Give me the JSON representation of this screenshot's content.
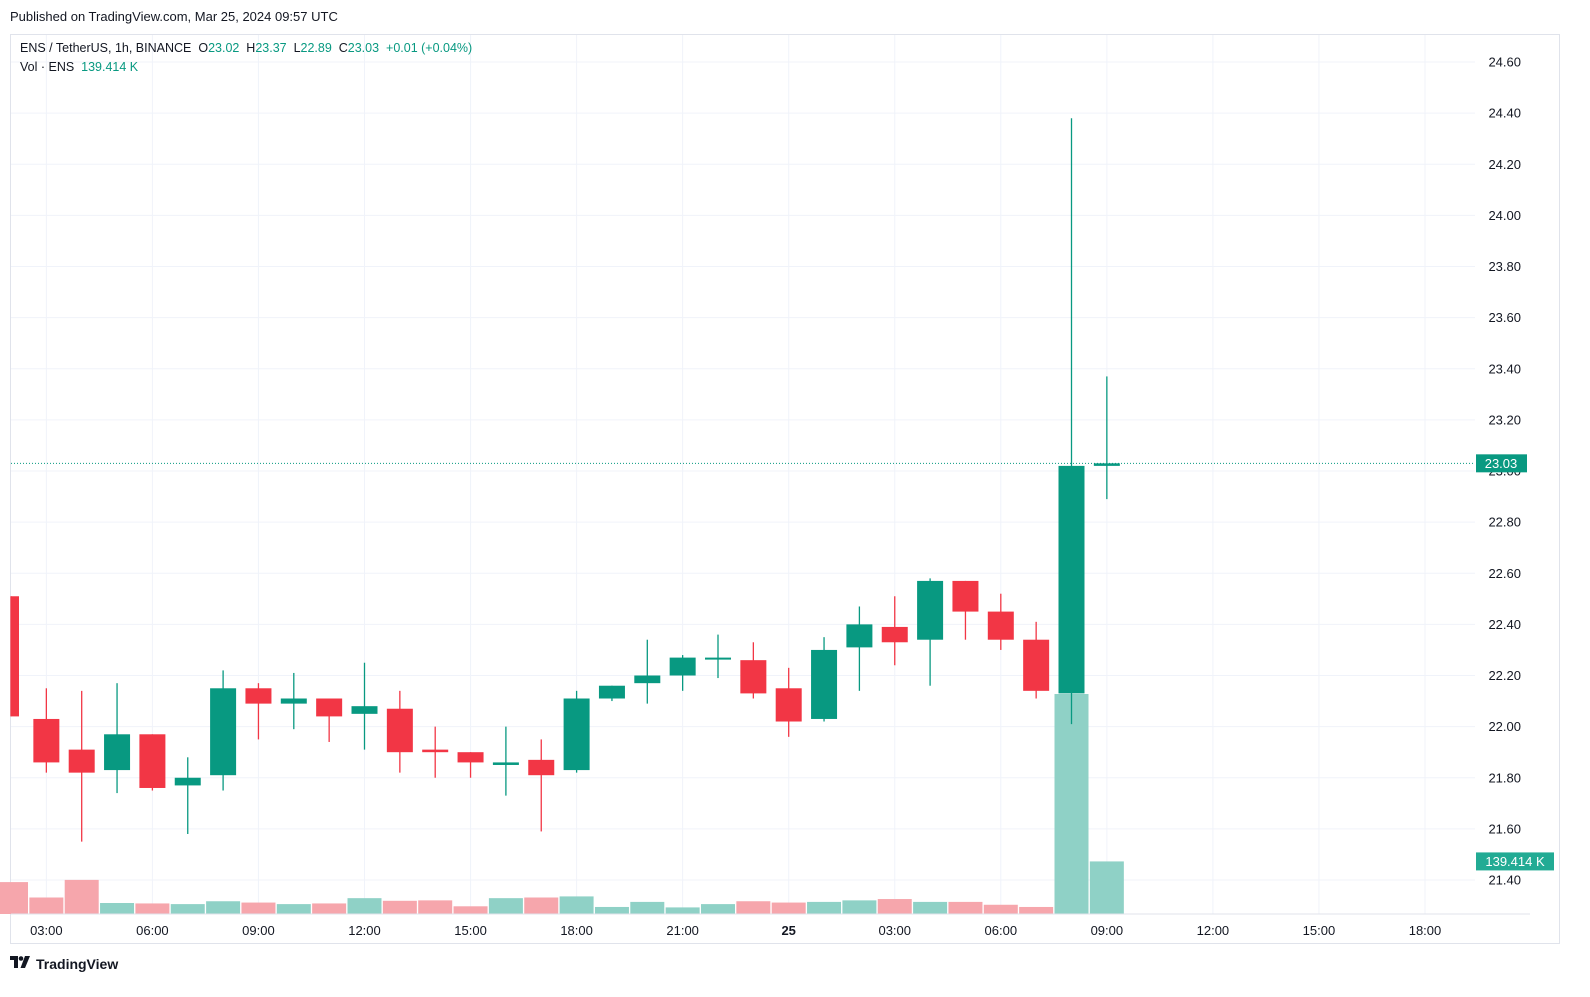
{
  "header": {
    "published": "Published on TradingView.com, Mar 25, 2024 09:57 UTC"
  },
  "legend": {
    "symbol": "ENS / TetherUS, 1h, BINANCE",
    "o_label": "O",
    "o_value": "23.02",
    "h_label": "H",
    "h_value": "23.37",
    "l_label": "L",
    "l_value": "22.89",
    "c_label": "C",
    "c_value": "23.03",
    "change": "+0.01 (+0.04%)",
    "vol_label": "Vol · ENS",
    "vol_value": "139.414 K"
  },
  "footer": {
    "logo_icon": "tradingview-logo-icon",
    "brand": "TradingView"
  },
  "colors": {
    "up": "#089981",
    "down": "#f23645",
    "up_vol": "#8fd1c6",
    "down_vol": "#f6a6ac",
    "grid": "#f0f3fa",
    "axis_text": "#131722"
  },
  "chart_data": {
    "type": "candlestick",
    "title": "ENS / TetherUS, 1h, BINANCE",
    "ylim": [
      21.3,
      24.7
    ],
    "y_ticks": [
      "21.40",
      "21.60",
      "21.80",
      "22.00",
      "22.20",
      "22.40",
      "22.60",
      "22.80",
      "23.00",
      "23.20",
      "23.40",
      "23.60",
      "23.80",
      "24.00",
      "24.20",
      "24.40",
      "24.60"
    ],
    "x_ticks": [
      {
        "index": 1,
        "label": "03:00"
      },
      {
        "index": 4,
        "label": "06:00"
      },
      {
        "index": 7,
        "label": "09:00"
      },
      {
        "index": 10,
        "label": "12:00"
      },
      {
        "index": 13,
        "label": "15:00"
      },
      {
        "index": 16,
        "label": "18:00"
      },
      {
        "index": 19,
        "label": "21:00"
      },
      {
        "index": 22,
        "label": "25",
        "bold": true
      },
      {
        "index": 25,
        "label": "03:00"
      },
      {
        "index": 28,
        "label": "06:00"
      },
      {
        "index": 31,
        "label": "09:00"
      },
      {
        "index": 34,
        "label": "12:00"
      },
      {
        "index": 37,
        "label": "15:00"
      },
      {
        "index": 40,
        "label": "18:00"
      }
    ],
    "last_price": "23.03",
    "last_volume": "139.414 K",
    "candles": [
      {
        "o": 22.51,
        "h": 22.51,
        "l": 22.04,
        "c": 22.04
      },
      {
        "o": 22.03,
        "h": 22.15,
        "l": 21.82,
        "c": 21.86
      },
      {
        "o": 21.91,
        "h": 22.14,
        "l": 21.55,
        "c": 21.82
      },
      {
        "o": 21.83,
        "h": 22.17,
        "l": 21.74,
        "c": 21.97
      },
      {
        "o": 21.97,
        "h": 21.97,
        "l": 21.75,
        "c": 21.76
      },
      {
        "o": 21.77,
        "h": 21.88,
        "l": 21.58,
        "c": 21.8
      },
      {
        "o": 21.81,
        "h": 22.22,
        "l": 21.75,
        "c": 22.15
      },
      {
        "o": 22.15,
        "h": 22.17,
        "l": 21.95,
        "c": 22.09
      },
      {
        "o": 22.09,
        "h": 22.21,
        "l": 21.99,
        "c": 22.11
      },
      {
        "o": 22.11,
        "h": 22.11,
        "l": 21.94,
        "c": 22.04
      },
      {
        "o": 22.05,
        "h": 22.25,
        "l": 21.91,
        "c": 22.08
      },
      {
        "o": 22.07,
        "h": 22.14,
        "l": 21.82,
        "c": 21.9
      },
      {
        "o": 21.91,
        "h": 22.0,
        "l": 21.8,
        "c": 21.9
      },
      {
        "o": 21.9,
        "h": 21.9,
        "l": 21.8,
        "c": 21.86
      },
      {
        "o": 21.85,
        "h": 22.0,
        "l": 21.73,
        "c": 21.86
      },
      {
        "o": 21.87,
        "h": 21.95,
        "l": 21.59,
        "c": 21.81
      },
      {
        "o": 21.83,
        "h": 22.14,
        "l": 21.82,
        "c": 22.11
      },
      {
        "o": 22.11,
        "h": 22.16,
        "l": 22.1,
        "c": 22.16
      },
      {
        "o": 22.17,
        "h": 22.34,
        "l": 22.09,
        "c": 22.2
      },
      {
        "o": 22.2,
        "h": 22.28,
        "l": 22.14,
        "c": 22.27
      },
      {
        "o": 22.27,
        "h": 22.36,
        "l": 22.19,
        "c": 22.27
      },
      {
        "o": 22.26,
        "h": 22.33,
        "l": 22.11,
        "c": 22.13
      },
      {
        "o": 22.15,
        "h": 22.23,
        "l": 21.96,
        "c": 22.02
      },
      {
        "o": 22.03,
        "h": 22.35,
        "l": 22.02,
        "c": 22.3
      },
      {
        "o": 22.31,
        "h": 22.47,
        "l": 22.14,
        "c": 22.4
      },
      {
        "o": 22.39,
        "h": 22.51,
        "l": 22.24,
        "c": 22.33
      },
      {
        "o": 22.34,
        "h": 22.58,
        "l": 22.16,
        "c": 22.57
      },
      {
        "o": 22.57,
        "h": 22.57,
        "l": 22.34,
        "c": 22.45
      },
      {
        "o": 22.45,
        "h": 22.52,
        "l": 22.3,
        "c": 22.34
      },
      {
        "o": 22.34,
        "h": 22.41,
        "l": 22.11,
        "c": 22.14
      },
      {
        "o": 22.13,
        "h": 24.38,
        "l": 22.01,
        "c": 23.02
      },
      {
        "o": 23.02,
        "h": 23.37,
        "l": 22.89,
        "c": 23.03
      }
    ],
    "volume": {
      "ylim": [
        0,
        1000
      ],
      "values": [
        145,
        75,
        155,
        50,
        48,
        45,
        58,
        52,
        45,
        48,
        72,
        60,
        62,
        35,
        72,
        75,
        80,
        32,
        55,
        30,
        45,
        58,
        52,
        55,
        62,
        68,
        55,
        55,
        42,
        32,
        1000,
        239
      ],
      "up": [
        false,
        false,
        false,
        true,
        false,
        true,
        true,
        false,
        true,
        false,
        true,
        false,
        false,
        false,
        true,
        false,
        true,
        true,
        true,
        true,
        true,
        false,
        false,
        true,
        true,
        false,
        true,
        false,
        false,
        false,
        true,
        true
      ]
    }
  }
}
